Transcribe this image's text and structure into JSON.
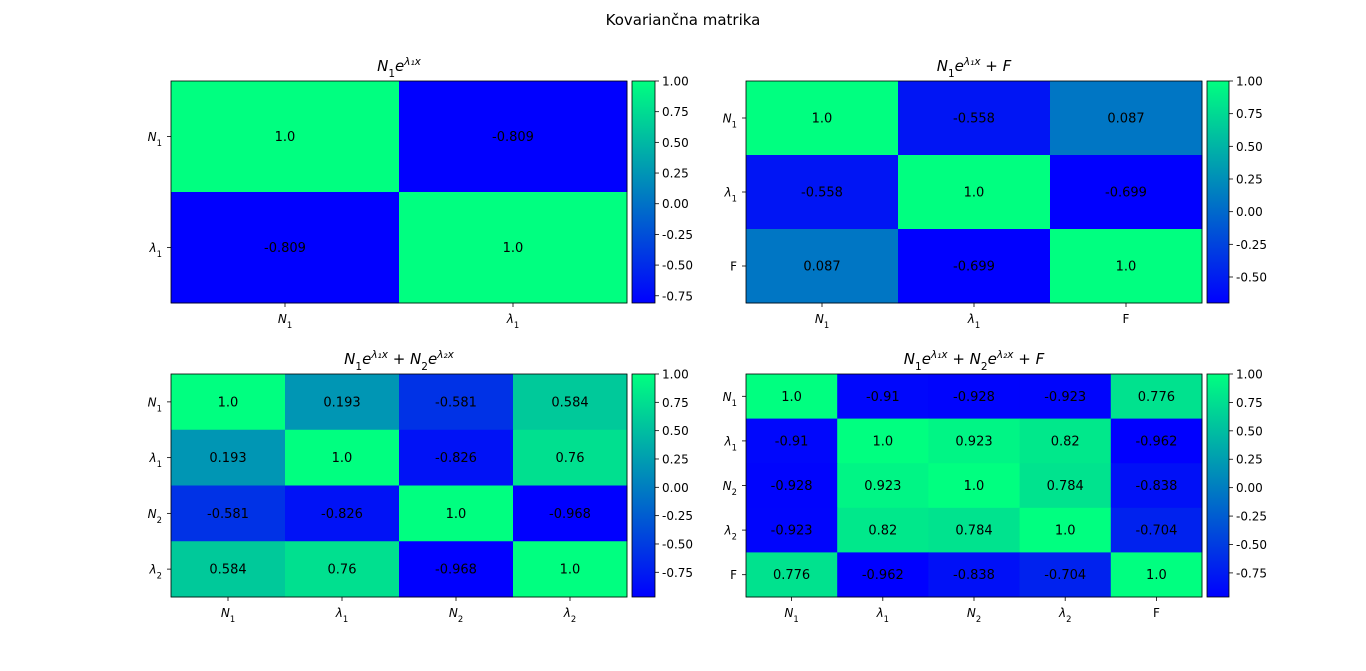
{
  "figure": {
    "title": "Kovariančna matrika"
  },
  "colormap": {
    "name": "winter",
    "low": "#0000ff",
    "high": "#00ff80"
  },
  "chart_data": [
    {
      "type": "heatmap",
      "title": "N₁e^{λ₁x}",
      "title_parts": [
        {
          "t": "N"
        },
        {
          "t": "1",
          "sub": true
        },
        {
          "t": "e"
        },
        {
          "t": "λ₁x",
          "sup": true
        }
      ],
      "labels": [
        [
          {
            "t": "N"
          },
          {
            "t": "1",
            "sub": true
          }
        ],
        [
          {
            "t": "λ"
          },
          {
            "t": "1",
            "sub": true
          }
        ]
      ],
      "matrix": [
        [
          1.0,
          -0.809
        ],
        [
          -0.809,
          1.0
        ]
      ],
      "cell_text": [
        [
          "1.0",
          "-0.809"
        ],
        [
          "-0.809",
          "1.0"
        ]
      ],
      "vmin": -0.809,
      "vmax": 1.0,
      "colorbar_ticks": [
        "1.00",
        "0.75",
        "0.50",
        "0.25",
        "0.00",
        "-0.25",
        "-0.50",
        "-0.75"
      ],
      "colorbar_values": [
        1.0,
        0.75,
        0.5,
        0.25,
        0.0,
        -0.25,
        -0.5,
        -0.75
      ]
    },
    {
      "type": "heatmap",
      "title": "N₁e^{λ₁x} + F",
      "title_parts": [
        {
          "t": "N"
        },
        {
          "t": "1",
          "sub": true
        },
        {
          "t": "e"
        },
        {
          "t": "λ₁x",
          "sup": true
        },
        {
          "t": " + F"
        }
      ],
      "labels": [
        [
          {
            "t": "N"
          },
          {
            "t": "1",
            "sub": true
          }
        ],
        [
          {
            "t": "λ"
          },
          {
            "t": "1",
            "sub": true
          }
        ],
        [
          {
            "t": "F",
            "upright": true
          }
        ]
      ],
      "matrix": [
        [
          1.0,
          -0.558,
          0.087
        ],
        [
          -0.558,
          1.0,
          -0.699
        ],
        [
          0.087,
          -0.699,
          1.0
        ]
      ],
      "cell_text": [
        [
          "1.0",
          "-0.558",
          "0.087"
        ],
        [
          "-0.558",
          "1.0",
          "-0.699"
        ],
        [
          "0.087",
          "-0.699",
          "1.0"
        ]
      ],
      "vmin": -0.699,
      "vmax": 1.0,
      "colorbar_ticks": [
        "1.00",
        "0.75",
        "0.50",
        "0.25",
        "0.00",
        "-0.25",
        "-0.50"
      ],
      "colorbar_values": [
        1.0,
        0.75,
        0.5,
        0.25,
        0.0,
        -0.25,
        -0.5
      ]
    },
    {
      "type": "heatmap",
      "title": "N₁e^{λ₁x} + N₂e^{λ₂x}",
      "title_parts": [
        {
          "t": "N"
        },
        {
          "t": "1",
          "sub": true
        },
        {
          "t": "e"
        },
        {
          "t": "λ₁x",
          "sup": true
        },
        {
          "t": " + N"
        },
        {
          "t": "2",
          "sub": true
        },
        {
          "t": "e"
        },
        {
          "t": "λ₂x",
          "sup": true
        }
      ],
      "labels": [
        [
          {
            "t": "N"
          },
          {
            "t": "1",
            "sub": true
          }
        ],
        [
          {
            "t": "λ"
          },
          {
            "t": "1",
            "sub": true
          }
        ],
        [
          {
            "t": "N"
          },
          {
            "t": "2",
            "sub": true
          }
        ],
        [
          {
            "t": "λ"
          },
          {
            "t": "2",
            "sub": true
          }
        ]
      ],
      "matrix": [
        [
          1.0,
          0.193,
          -0.581,
          0.584
        ],
        [
          0.193,
          1.0,
          -0.826,
          0.76
        ],
        [
          -0.581,
          -0.826,
          1.0,
          -0.968
        ],
        [
          0.584,
          0.76,
          -0.968,
          1.0
        ]
      ],
      "cell_text": [
        [
          "1.0",
          "0.193",
          "-0.581",
          "0.584"
        ],
        [
          "0.193",
          "1.0",
          "-0.826",
          "0.76"
        ],
        [
          "-0.581",
          "-0.826",
          "1.0",
          "-0.968"
        ],
        [
          "0.584",
          "0.76",
          "-0.968",
          "1.0"
        ]
      ],
      "vmin": -0.968,
      "vmax": 1.0,
      "colorbar_ticks": [
        "1.00",
        "0.75",
        "0.50",
        "0.25",
        "0.00",
        "-0.25",
        "-0.50",
        "-0.75"
      ],
      "colorbar_values": [
        1.0,
        0.75,
        0.5,
        0.25,
        0.0,
        -0.25,
        -0.5,
        -0.75
      ]
    },
    {
      "type": "heatmap",
      "title": "N₁e^{λ₁x} + N₂e^{λ₂x} + F",
      "title_parts": [
        {
          "t": "N"
        },
        {
          "t": "1",
          "sub": true
        },
        {
          "t": "e"
        },
        {
          "t": "λ₁x",
          "sup": true
        },
        {
          "t": " + N"
        },
        {
          "t": "2",
          "sub": true
        },
        {
          "t": "e"
        },
        {
          "t": "λ₂x",
          "sup": true
        },
        {
          "t": " + F"
        }
      ],
      "labels": [
        [
          {
            "t": "N"
          },
          {
            "t": "1",
            "sub": true
          }
        ],
        [
          {
            "t": "λ"
          },
          {
            "t": "1",
            "sub": true
          }
        ],
        [
          {
            "t": "N"
          },
          {
            "t": "2",
            "sub": true
          }
        ],
        [
          {
            "t": "λ"
          },
          {
            "t": "2",
            "sub": true
          }
        ],
        [
          {
            "t": "F",
            "upright": true
          }
        ]
      ],
      "matrix": [
        [
          1.0,
          -0.91,
          -0.928,
          -0.923,
          0.776
        ],
        [
          -0.91,
          1.0,
          0.923,
          0.82,
          -0.962
        ],
        [
          -0.928,
          0.923,
          1.0,
          0.784,
          -0.838
        ],
        [
          -0.923,
          0.82,
          0.784,
          1.0,
          -0.704
        ],
        [
          0.776,
          -0.962,
          -0.838,
          -0.704,
          1.0
        ]
      ],
      "cell_text": [
        [
          "1.0",
          "-0.91",
          "-0.928",
          "-0.923",
          "0.776"
        ],
        [
          "-0.91",
          "1.0",
          "0.923",
          "0.82",
          "-0.962"
        ],
        [
          "-0.928",
          "0.923",
          "1.0",
          "0.784",
          "-0.838"
        ],
        [
          "-0.923",
          "0.82",
          "0.784",
          "1.0",
          "-0.704"
        ],
        [
          "0.776",
          "-0.962",
          "-0.838",
          "-0.704",
          "1.0"
        ]
      ],
      "vmin": -0.962,
      "vmax": 1.0,
      "colorbar_ticks": [
        "1.00",
        "0.75",
        "0.50",
        "0.25",
        "0.00",
        "-0.25",
        "-0.50",
        "-0.75"
      ],
      "colorbar_values": [
        1.0,
        0.75,
        0.5,
        0.25,
        0.0,
        -0.25,
        -0.5,
        -0.75
      ]
    }
  ]
}
